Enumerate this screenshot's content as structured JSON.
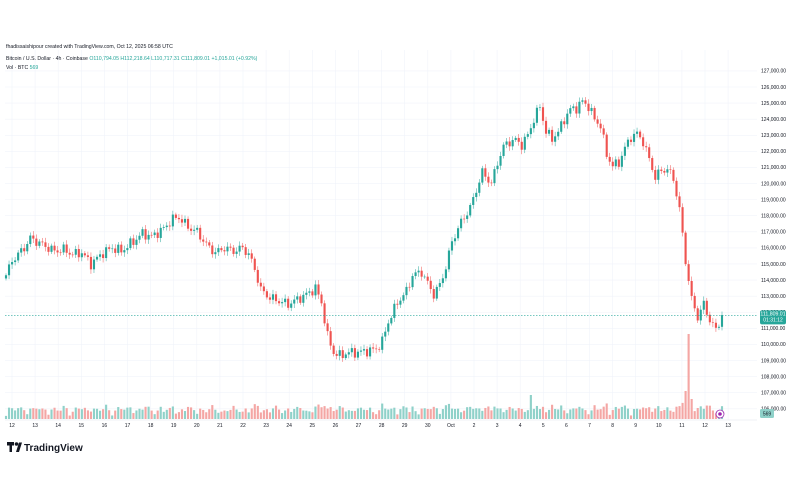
{
  "header": {
    "credit": "fhadissaishipour created with TradingView.com, Oct 12, 2025 06:58 UTC",
    "symbol_line": "Bitcoin / U.S. Dollar · 4h · Coinbase",
    "ohlc": "O110,794.05 H112,218.64 L110,717.31 C111,809.01 +1,015.01 (+0.92%)",
    "volume_label": "Vol · BTC",
    "volume_value": "569"
  },
  "branding": {
    "logo_text": "TradingView"
  },
  "colors": {
    "up": "#26a69a",
    "down": "#ef5350",
    "vol_up": "#8fd1c9",
    "vol_down": "#f4a6a4",
    "grid": "#f0f3fa",
    "axis_text": "#131722",
    "last_price_bg": "#26a69a"
  },
  "chart_data": {
    "type": "candlestick",
    "timeframe": "4h",
    "x_tick_labels": [
      "12",
      "13",
      "14",
      "15",
      "16",
      "17",
      "18",
      "19",
      "20",
      "21",
      "22",
      "23",
      "24",
      "25",
      "26",
      "27",
      "28",
      "29",
      "30",
      "Oct",
      "2",
      "3",
      "4",
      "5",
      "6",
      "7",
      "8",
      "9",
      "10",
      "11",
      "12",
      "13"
    ],
    "y_tick_labels": [
      "127,000.00",
      "126,000.00",
      "125,000.00",
      "124,000.00",
      "123,000.00",
      "122,000.00",
      "121,000.00",
      "120,000.00",
      "119,000.00",
      "118,000.00",
      "117,000.00",
      "116,000.00",
      "115,000.00",
      "114,000.00",
      "113,000.00",
      "112,000.00",
      "111,000.00",
      "110,000.00",
      "109,000.00",
      "108,000.00",
      "107,000.00",
      "106,000.00"
    ],
    "ylim": [
      105800,
      128300
    ],
    "last_price": 111809.01,
    "last_price_label": "111,809.01",
    "countdown_label": "01:31:12",
    "volume_axis_label": "569",
    "volume_series_name": "Vol · BTC",
    "anchors": [
      [
        0,
        114300
      ],
      [
        2,
        115200
      ],
      [
        6,
        116000
      ],
      [
        8,
        116600
      ],
      [
        12,
        116200
      ],
      [
        16,
        115800
      ],
      [
        19,
        115900
      ],
      [
        22,
        115600
      ],
      [
        25,
        115700
      ],
      [
        28,
        115000
      ],
      [
        32,
        115700
      ],
      [
        35,
        116000
      ],
      [
        38,
        115800
      ],
      [
        42,
        116400
      ],
      [
        45,
        116900
      ],
      [
        48,
        116700
      ],
      [
        52,
        117200
      ],
      [
        55,
        117800
      ],
      [
        57,
        117900
      ],
      [
        60,
        117300
      ],
      [
        63,
        117000
      ],
      [
        66,
        116200
      ],
      [
        69,
        115700
      ],
      [
        72,
        116000
      ],
      [
        75,
        115800
      ],
      [
        78,
        116000
      ],
      [
        80,
        115600
      ],
      [
        82,
        114700
      ],
      [
        84,
        113400
      ],
      [
        87,
        112900
      ],
      [
        90,
        112700
      ],
      [
        93,
        112500
      ],
      [
        96,
        112800
      ],
      [
        99,
        113100
      ],
      [
        102,
        113500
      ],
      [
        104,
        112600
      ],
      [
        106,
        110500
      ],
      [
        108,
        109500
      ],
      [
        110,
        109300
      ],
      [
        113,
        109500
      ],
      [
        116,
        109500
      ],
      [
        119,
        109600
      ],
      [
        122,
        109700
      ],
      [
        124,
        110200
      ],
      [
        126,
        111400
      ],
      [
        129,
        112600
      ],
      [
        132,
        113300
      ],
      [
        134,
        114300
      ],
      [
        137,
        114500
      ],
      [
        139,
        113800
      ],
      [
        141,
        113100
      ],
      [
        143,
        113700
      ],
      [
        145,
        114800
      ],
      [
        147,
        116400
      ],
      [
        150,
        117600
      ],
      [
        153,
        118500
      ],
      [
        155,
        119600
      ],
      [
        157,
        120700
      ],
      [
        160,
        120000
      ],
      [
        162,
        121300
      ],
      [
        164,
        122300
      ],
      [
        166,
        122600
      ],
      [
        168,
        122700
      ],
      [
        170,
        122400
      ],
      [
        172,
        123000
      ],
      [
        174,
        124000
      ],
      [
        176,
        124800
      ],
      [
        178,
        123200
      ],
      [
        180,
        122800
      ],
      [
        182,
        123200
      ],
      [
        184,
        124000
      ],
      [
        186,
        124600
      ],
      [
        188,
        124700
      ],
      [
        190,
        125100
      ],
      [
        192,
        124800
      ],
      [
        194,
        124000
      ],
      [
        196,
        123600
      ],
      [
        198,
        121800
      ],
      [
        200,
        121100
      ],
      [
        202,
        121300
      ],
      [
        204,
        122200
      ],
      [
        206,
        122900
      ],
      [
        208,
        123100
      ],
      [
        210,
        122600
      ],
      [
        212,
        121500
      ],
      [
        214,
        120400
      ],
      [
        216,
        120800
      ],
      [
        218,
        120900
      ],
      [
        220,
        120300
      ],
      [
        222,
        118400
      ],
      [
        224,
        115200
      ],
      [
        226,
        112800
      ],
      [
        228,
        111700
      ],
      [
        230,
        112500
      ],
      [
        232,
        111500
      ],
      [
        234,
        110900
      ],
      [
        236,
        111800
      ]
    ],
    "total_candles": 237,
    "spike_index": 225
  }
}
